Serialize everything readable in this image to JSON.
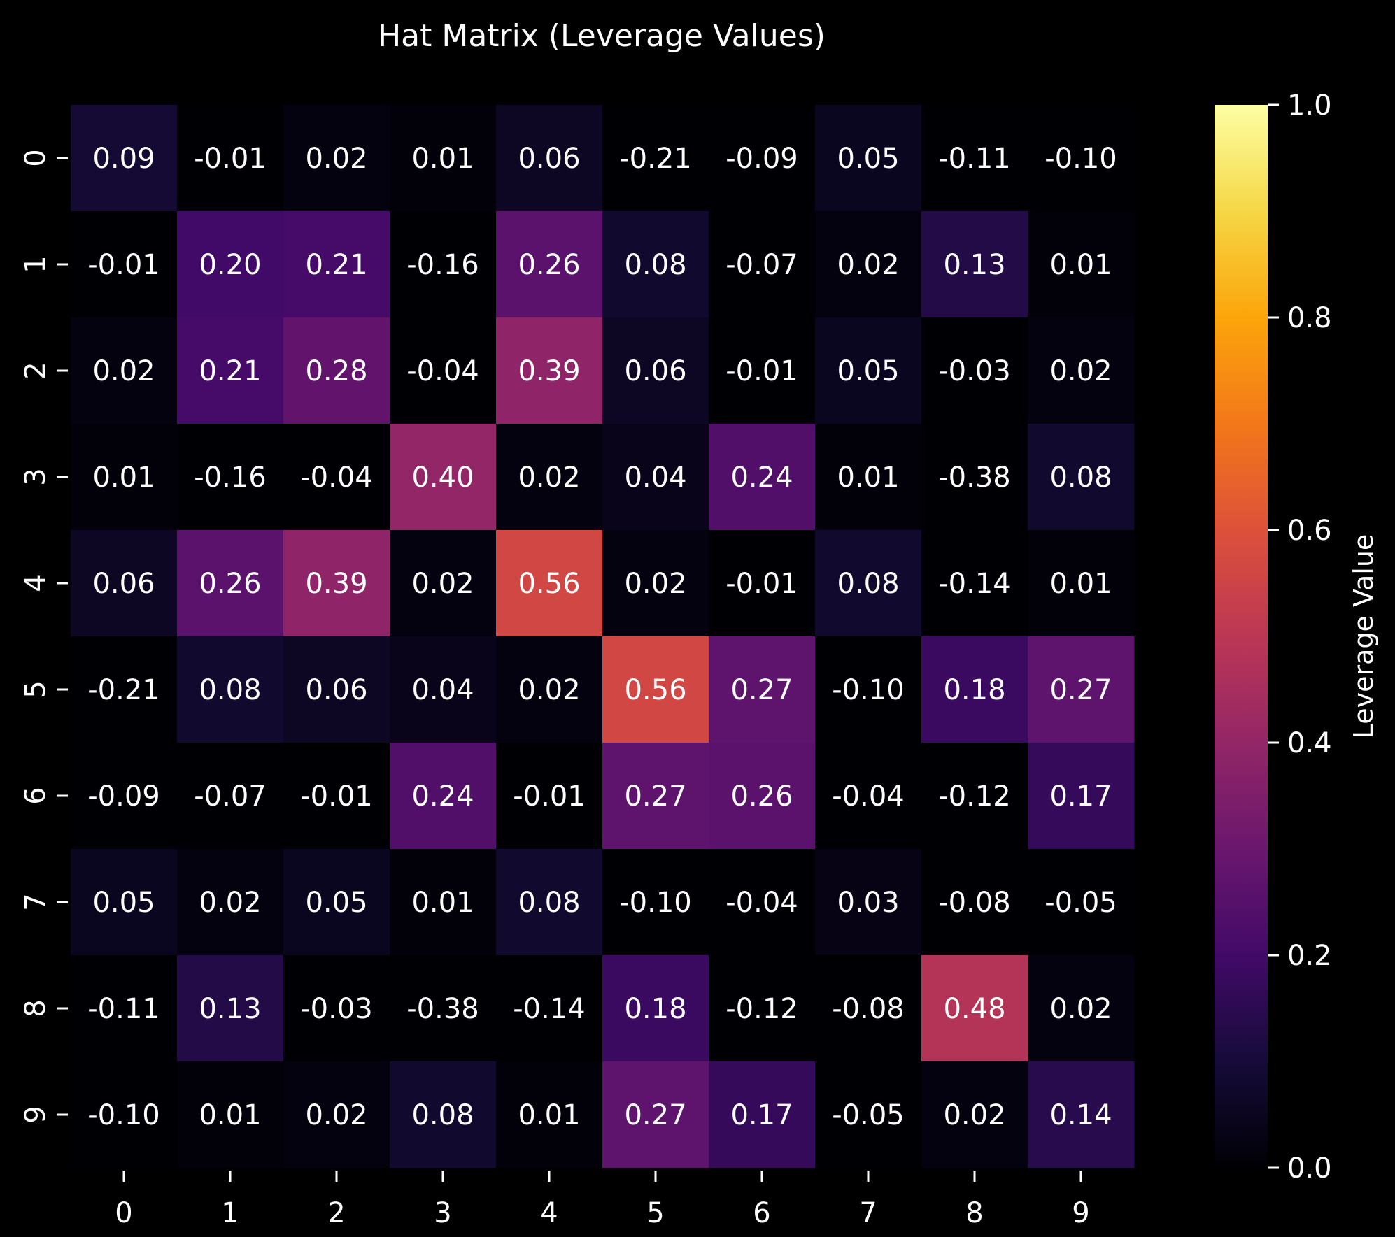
{
  "chart_data": {
    "type": "heatmap",
    "title": "Hat Matrix (Leverage Values)",
    "x_categories": [
      "0",
      "1",
      "2",
      "3",
      "4",
      "5",
      "6",
      "7",
      "8",
      "9"
    ],
    "y_categories": [
      "0",
      "1",
      "2",
      "3",
      "4",
      "5",
      "6",
      "7",
      "8",
      "9"
    ],
    "values": [
      [
        0.09,
        -0.01,
        0.02,
        0.01,
        0.06,
        -0.21,
        -0.09,
        0.05,
        -0.11,
        -0.1
      ],
      [
        -0.01,
        0.2,
        0.21,
        -0.16,
        0.26,
        0.08,
        -0.07,
        0.02,
        0.13,
        0.01
      ],
      [
        0.02,
        0.21,
        0.28,
        -0.04,
        0.39,
        0.06,
        -0.01,
        0.05,
        -0.03,
        0.02
      ],
      [
        0.01,
        -0.16,
        -0.04,
        0.4,
        0.02,
        0.04,
        0.24,
        0.01,
        -0.38,
        0.08
      ],
      [
        0.06,
        0.26,
        0.39,
        0.02,
        0.56,
        0.02,
        -0.01,
        0.08,
        -0.14,
        0.01
      ],
      [
        -0.21,
        0.08,
        0.06,
        0.04,
        0.02,
        0.56,
        0.27,
        -0.1,
        0.18,
        0.27
      ],
      [
        -0.09,
        -0.07,
        -0.01,
        0.24,
        -0.01,
        0.27,
        0.26,
        -0.04,
        -0.12,
        0.17
      ],
      [
        0.05,
        0.02,
        0.05,
        0.01,
        0.08,
        -0.1,
        -0.04,
        0.03,
        -0.08,
        -0.05
      ],
      [
        -0.11,
        0.13,
        -0.03,
        -0.38,
        -0.14,
        0.18,
        -0.12,
        -0.08,
        0.48,
        0.02
      ],
      [
        -0.1,
        0.01,
        0.02,
        0.08,
        0.01,
        0.27,
        0.17,
        -0.05,
        0.02,
        0.14
      ]
    ],
    "value_format_decimals": 2,
    "colormap": "inferno",
    "color_range": [
      0.0,
      1.0
    ],
    "colorbar": {
      "label": "Leverage Value",
      "ticks": [
        0.0,
        0.2,
        0.4,
        0.6,
        0.8,
        1.0
      ],
      "tick_labels": [
        "0.0",
        "0.2",
        "0.4",
        "0.6",
        "0.8",
        "1.0"
      ]
    },
    "background_color": "#000000",
    "text_color": "#ffffff"
  }
}
